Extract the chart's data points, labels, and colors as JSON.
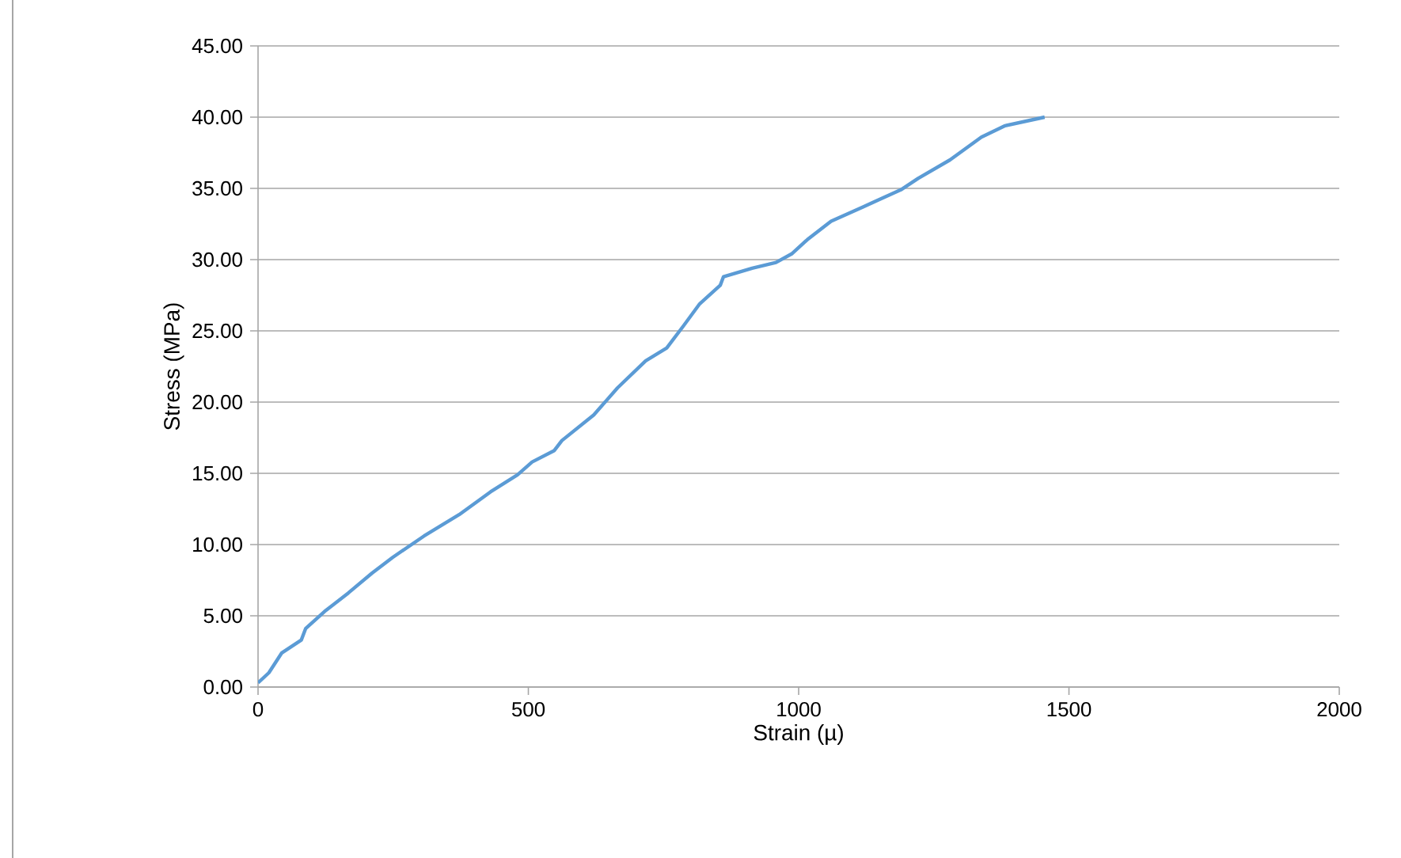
{
  "chart_data": {
    "type": "line",
    "xlabel": "Strain (µ)",
    "ylabel": "Stress  (MPa)",
    "grid": "y",
    "marker": "none",
    "line_style": "solid",
    "xlim": [
      0,
      2000
    ],
    "xticks": [
      0,
      500,
      1000,
      1500,
      2000
    ],
    "ylim": [
      0,
      45
    ],
    "yticks": [
      {
        "value": 0,
        "label": "0.00"
      },
      {
        "value": 5,
        "label": "5.00"
      },
      {
        "value": 10,
        "label": "10.00"
      },
      {
        "value": 15,
        "label": "15.00"
      },
      {
        "value": 20,
        "label": "20.00"
      },
      {
        "value": 25,
        "label": "25.00"
      },
      {
        "value": 30,
        "label": "30.00"
      },
      {
        "value": 35,
        "label": "35.00"
      },
      {
        "value": 40,
        "label": "40.00"
      },
      {
        "value": 45,
        "label": "45.00"
      }
    ],
    "series": [
      {
        "color": "#5b9bd5",
        "x": [
          0,
          20,
          44,
          80,
          88,
          123,
          167,
          211,
          249,
          307,
          372,
          430,
          480,
          507,
          548,
          562,
          621,
          665,
          717,
          756,
          788,
          817,
          855,
          861,
          914,
          958,
          987,
          1016,
          1060,
          1119,
          1189,
          1221,
          1280,
          1338,
          1382,
          1455
        ],
        "values": [
          0.3,
          1.0,
          2.4,
          3.3,
          4.1,
          5.3,
          6.6,
          8.0,
          9.1,
          10.6,
          12.1,
          13.7,
          14.9,
          15.8,
          16.6,
          17.3,
          19.1,
          21.0,
          22.9,
          23.8,
          25.4,
          26.9,
          28.2,
          28.8,
          29.4,
          29.8,
          30.4,
          31.4,
          32.7,
          33.7,
          34.9,
          35.7,
          37.0,
          38.6,
          39.4,
          40.0
        ]
      }
    ]
  }
}
